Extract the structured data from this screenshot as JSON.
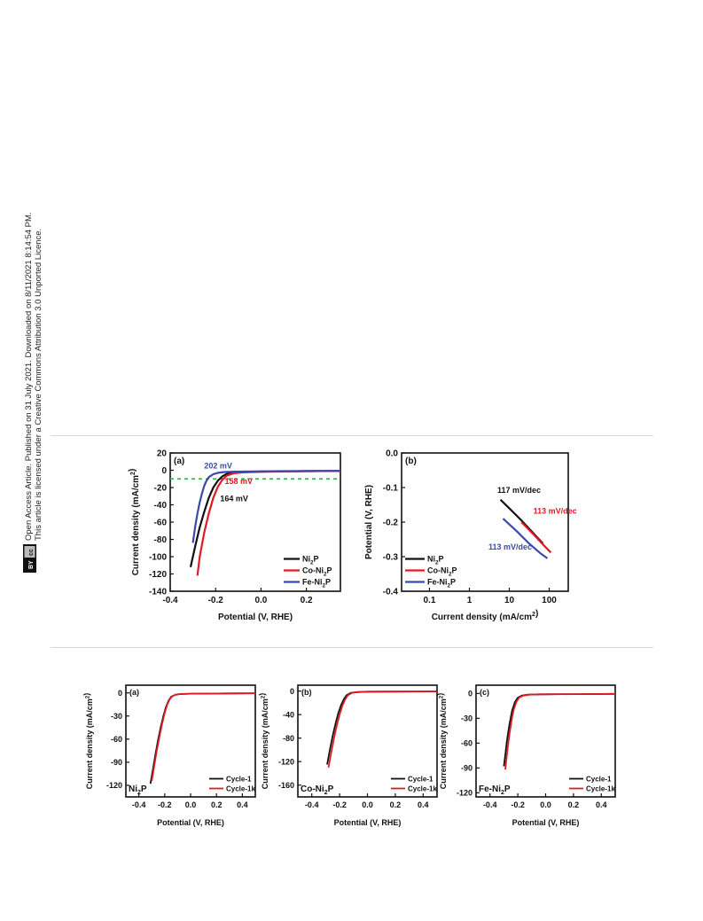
{
  "margin_note": {
    "line1": "Open Access Article. Published on 31 July 2021. Downloaded on 8/11/2021 8:14:54 PM.",
    "line2": "This article is licensed under a Creative Commons Attribution 3.0 Unported Licence.",
    "badge_cc": "cc",
    "badge_by": "BY"
  },
  "colors": {
    "black": "#111111",
    "red": "#e01b24",
    "blue": "#3b4aa8",
    "green": "#39b54a"
  },
  "chart_data": [
    {
      "type": "line",
      "panel_label": "(a)",
      "xlabel": "Potential (V, RHE)",
      "ylabel": "Current density (mA/cm2)",
      "xlim": [
        -0.4,
        0.35
      ],
      "ylim": [
        -140,
        20
      ],
      "xticks": [
        "-0.4",
        "-0.2",
        "0.0",
        "0.2"
      ],
      "yticks": [
        "20",
        "0",
        "-20",
        "-40",
        "-60",
        "-80",
        "-100",
        "-120",
        "-140"
      ],
      "reference_line": {
        "y": -10,
        "color": "#39b54a",
        "style": "dashed"
      },
      "annotations": [
        {
          "text": "202 mV",
          "x": -0.25,
          "y": 2,
          "color": "#3b4aa8"
        },
        {
          "text": "158 mV",
          "x": -0.16,
          "y": -16,
          "color": "#e01b24"
        },
        {
          "text": "164 mV",
          "x": -0.18,
          "y": -36,
          "color": "#111111"
        }
      ],
      "series": [
        {
          "name": "Ni2P",
          "color": "#111111",
          "x": [
            -0.31,
            -0.29,
            -0.27,
            -0.25,
            -0.23,
            -0.21,
            -0.19,
            -0.17,
            -0.15,
            -0.12,
            -0.08,
            0.0,
            0.1,
            0.2,
            0.35
          ],
          "y": [
            -112,
            -88,
            -66,
            -48,
            -32,
            -20,
            -12,
            -7,
            -4,
            -2.5,
            -2,
            -1.5,
            -1.2,
            -1,
            -0.8
          ]
        },
        {
          "name": "Co-Ni2P",
          "color": "#e01b24",
          "x": [
            -0.28,
            -0.27,
            -0.25,
            -0.23,
            -0.21,
            -0.19,
            -0.17,
            -0.15,
            -0.12,
            -0.08,
            0.0,
            0.1,
            0.2,
            0.35
          ],
          "y": [
            -122,
            -100,
            -72,
            -50,
            -32,
            -19,
            -11,
            -6,
            -3.5,
            -2.5,
            -1.8,
            -1.3,
            -1,
            -0.8
          ]
        },
        {
          "name": "Fe-Ni2P",
          "color": "#3b4aa8",
          "x": [
            -0.3,
            -0.29,
            -0.28,
            -0.27,
            -0.26,
            -0.25,
            -0.24,
            -0.23,
            -0.21,
            -0.19,
            -0.16,
            -0.12,
            0.0,
            0.1,
            0.2,
            0.35
          ],
          "y": [
            -84,
            -65,
            -50,
            -37,
            -27,
            -18,
            -12,
            -8,
            -4.5,
            -3,
            -2,
            -1.6,
            -1.2,
            -1,
            -0.9,
            -0.7
          ]
        }
      ],
      "legend": {
        "position": "bottom-right",
        "labels": [
          "Ni2P",
          "Co-Ni2P",
          "Fe-Ni2P"
        ]
      }
    },
    {
      "type": "line",
      "panel_label": "(b)",
      "xlabel": "Current density (mA/cm2)",
      "ylabel": "Potential (V, RHE)",
      "xscale": "log",
      "xlim": [
        0.02,
        300
      ],
      "ylim": [
        -0.4,
        0.0
      ],
      "xticks": [
        "0.1",
        "1",
        "10",
        "100"
      ],
      "yticks": [
        "0.0",
        "-0.1",
        "-0.2",
        "-0.3",
        "-0.4"
      ],
      "annotations": [
        {
          "text": "117 mV/dec",
          "color": "#111111"
        },
        {
          "text": "113 mV/dec",
          "color": "#e01b24"
        },
        {
          "text": "113 mV/dec",
          "color": "#3b4aa8"
        }
      ],
      "series": [
        {
          "name": "Ni2P",
          "color": "#111111",
          "x": [
            6,
            10,
            20,
            40,
            70
          ],
          "y": [
            -0.135,
            -0.16,
            -0.195,
            -0.232,
            -0.262
          ]
        },
        {
          "name": "Co-Ni2P",
          "color": "#e01b24",
          "x": [
            20,
            40,
            70,
            110
          ],
          "y": [
            -0.2,
            -0.235,
            -0.265,
            -0.288
          ]
        },
        {
          "name": "Fe-Ni2P",
          "color": "#3b4aa8",
          "x": [
            7,
            15,
            30,
            60,
            90
          ],
          "y": [
            -0.19,
            -0.225,
            -0.26,
            -0.29,
            -0.305
          ]
        }
      ],
      "legend": {
        "position": "bottom-left",
        "labels": [
          "Ni2P",
          "Co-Ni2P",
          "Fe-Ni2P"
        ]
      }
    },
    {
      "type": "line",
      "panel_label": "(a)",
      "sample_label": "Ni2P",
      "xlabel": "Potential (V, RHE)",
      "ylabel": "Current density (mA/cm2)",
      "xlim": [
        -0.5,
        0.5
      ],
      "ylim": [
        -135,
        10
      ],
      "xticks": [
        "-0.4",
        "-0.2",
        "0.0",
        "0.2",
        "0.4"
      ],
      "yticks": [
        "0",
        "-30",
        "-60",
        "-90",
        "-120"
      ],
      "series": [
        {
          "name": "Cycle-1",
          "color": "#111111",
          "x": [
            -0.31,
            -0.29,
            -0.27,
            -0.25,
            -0.23,
            -0.21,
            -0.19,
            -0.17,
            -0.15,
            -0.12,
            -0.08,
            0.0,
            0.2,
            0.5
          ],
          "y": [
            -118,
            -98,
            -78,
            -60,
            -44,
            -30,
            -18,
            -10,
            -5,
            -2.5,
            -1.5,
            -1,
            -0.8,
            -0.5
          ]
        },
        {
          "name": "Cycle-1k",
          "color": "#e01b24",
          "x": [
            -0.3,
            -0.28,
            -0.26,
            -0.24,
            -0.22,
            -0.2,
            -0.18,
            -0.16,
            -0.14,
            -0.11,
            -0.07,
            0.0,
            0.2,
            0.5
          ],
          "y": [
            -114,
            -94,
            -74,
            -56,
            -40,
            -26,
            -15,
            -8,
            -4,
            -2,
            -1.4,
            -1,
            -0.8,
            -0.5
          ]
        }
      ],
      "legend": {
        "position": "bottom-right",
        "labels": [
          "Cycle-1",
          "Cycle-1k"
        ]
      }
    },
    {
      "type": "line",
      "panel_label": "(b)",
      "sample_label": "Co-Ni2P",
      "xlabel": "Potential (V, RHE)",
      "ylabel": "Current density (mA/cm2)",
      "xlim": [
        -0.5,
        0.5
      ],
      "ylim": [
        -180,
        10
      ],
      "xticks": [
        "-0.4",
        "-0.2",
        "0.0",
        "0.2",
        "0.4"
      ],
      "yticks": [
        "0",
        "-40",
        "-80",
        "-120",
        "-160"
      ],
      "series": [
        {
          "name": "Cycle-1",
          "color": "#111111",
          "x": [
            -0.29,
            -0.27,
            -0.25,
            -0.23,
            -0.21,
            -0.19,
            -0.17,
            -0.15,
            -0.12,
            -0.08,
            0.0,
            0.2,
            0.5
          ],
          "y": [
            -125,
            -100,
            -76,
            -56,
            -38,
            -24,
            -14,
            -7,
            -3,
            -1.8,
            -1,
            -0.8,
            -0.5
          ]
        },
        {
          "name": "Cycle-1k",
          "color": "#e01b24",
          "x": [
            -0.28,
            -0.26,
            -0.24,
            -0.22,
            -0.2,
            -0.18,
            -0.16,
            -0.14,
            -0.11,
            -0.07,
            0.0,
            0.2,
            0.5
          ],
          "y": [
            -130,
            -104,
            -80,
            -58,
            -40,
            -25,
            -14,
            -7,
            -3,
            -1.8,
            -1,
            -0.8,
            -0.5
          ]
        }
      ],
      "legend": {
        "position": "bottom-right",
        "labels": [
          "Cycle-1",
          "Cycle-1k"
        ]
      }
    },
    {
      "type": "line",
      "panel_label": "(c)",
      "sample_label": "Fe-Ni2P",
      "xlabel": "Potential (V, RHE)",
      "ylabel": "Current density (mA/cm2)",
      "xlim": [
        -0.5,
        0.5
      ],
      "ylim": [
        -125,
        10
      ],
      "xticks": [
        "-0.4",
        "-0.2",
        "0.0",
        "0.2",
        "0.4"
      ],
      "yticks": [
        "0",
        "-30",
        "-60",
        "-90",
        "-120"
      ],
      "series": [
        {
          "name": "Cycle-1",
          "color": "#111111",
          "x": [
            -0.3,
            -0.29,
            -0.28,
            -0.27,
            -0.26,
            -0.25,
            -0.24,
            -0.22,
            -0.2,
            -0.17,
            -0.13,
            -0.05,
            0.2,
            0.5
          ],
          "y": [
            -88,
            -74,
            -60,
            -48,
            -37,
            -28,
            -20,
            -10,
            -5,
            -2.5,
            -1.5,
            -1,
            -0.8,
            -0.5
          ]
        },
        {
          "name": "Cycle-1k",
          "color": "#e01b24",
          "x": [
            -0.29,
            -0.28,
            -0.27,
            -0.26,
            -0.25,
            -0.24,
            -0.23,
            -0.21,
            -0.19,
            -0.16,
            -0.12,
            -0.04,
            0.2,
            0.5
          ],
          "y": [
            -92,
            -77,
            -62,
            -49,
            -38,
            -28,
            -20,
            -10,
            -5,
            -2.5,
            -1.5,
            -1,
            -0.8,
            -0.5
          ]
        }
      ],
      "legend": {
        "position": "bottom-right",
        "labels": [
          "Cycle-1",
          "Cycle-1k"
        ]
      }
    }
  ]
}
